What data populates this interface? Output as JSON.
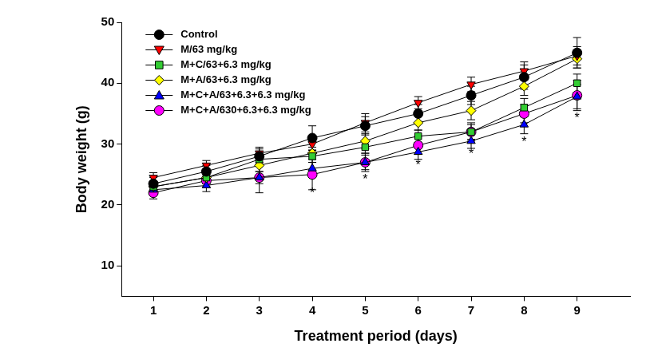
{
  "chart_data": {
    "type": "line",
    "x_label": "Treatment period (days)",
    "y_label": "Body weight (g)",
    "x": [
      1,
      2,
      3,
      4,
      5,
      6,
      7,
      8,
      9
    ],
    "xlim": [
      0.4,
      10
    ],
    "xticks": [
      1,
      2,
      3,
      4,
      5,
      6,
      7,
      8,
      9
    ],
    "ylim": [
      5,
      50
    ],
    "yticks": [
      10,
      20,
      30,
      40,
      50
    ],
    "grid": false,
    "legend": "upper left",
    "series": [
      {
        "name": "Control",
        "color": "#000000",
        "marker": "circle",
        "values": [
          23.5,
          25.5,
          28,
          31,
          33,
          35,
          38,
          41,
          45
        ],
        "errors": [
          1,
          1,
          1.2,
          2,
          1.5,
          1.5,
          1.5,
          2,
          2.5
        ]
      },
      {
        "name": "M/63 mg/kg",
        "color": "#ff0000",
        "marker": "triangle-down",
        "values": [
          24.5,
          26.5,
          28.5,
          30,
          33.5,
          36.8,
          39.8,
          42,
          44.5
        ],
        "errors": [
          0.8,
          0.8,
          1,
          1,
          1.5,
          1,
          1.2,
          1.5,
          1.5
        ]
      },
      {
        "name": "M+C/63+6.3 mg/kg",
        "color": "#33cc33",
        "marker": "square",
        "values": [
          23,
          24.5,
          27.5,
          28,
          29.5,
          31.3,
          32,
          36,
          40
        ],
        "errors": [
          0.8,
          1,
          1,
          1,
          1,
          1,
          1.2,
          1.5,
          1.5
        ]
      },
      {
        "name": "M+A/63+6.3 mg/kg",
        "color": "#ffff00",
        "marker": "diamond",
        "values": [
          23,
          24.5,
          26.5,
          28.5,
          30.5,
          33.5,
          35.5,
          39.5,
          44
        ],
        "errors": [
          0.8,
          1,
          1,
          1,
          1.2,
          1.2,
          1.5,
          1.5,
          1.5
        ]
      },
      {
        "name": "M+C+A/63+6.3+6.3 mg/kg",
        "color": "#0000ff",
        "marker": "triangle",
        "values": [
          22.5,
          23.2,
          24.5,
          26,
          27,
          28.7,
          30.5,
          33.2,
          37.8
        ],
        "errors": [
          0.8,
          1,
          1,
          1,
          1.2,
          1.2,
          1.2,
          1.5,
          2
        ]
      },
      {
        "name": "M+C+A/630+6.3+6.3 mg/kg",
        "color": "#ff00ff",
        "marker": "circle",
        "values": [
          22,
          24,
          24.5,
          25,
          27,
          29.8,
          32,
          35,
          38
        ],
        "errors": [
          1,
          1,
          2.5,
          2.5,
          1.5,
          1.5,
          1.5,
          1.5,
          2.5
        ]
      }
    ],
    "annotations": [
      {
        "x": 4,
        "y": 21.9,
        "text": "*"
      },
      {
        "x": 5,
        "y": 24.1,
        "text": "*"
      },
      {
        "x": 6,
        "y": 26.5,
        "text": "*"
      },
      {
        "x": 7,
        "y": 28.3,
        "text": "*"
      },
      {
        "x": 8,
        "y": 30.3,
        "text": "*"
      },
      {
        "x": 9,
        "y": 34.2,
        "text": "*"
      }
    ]
  }
}
